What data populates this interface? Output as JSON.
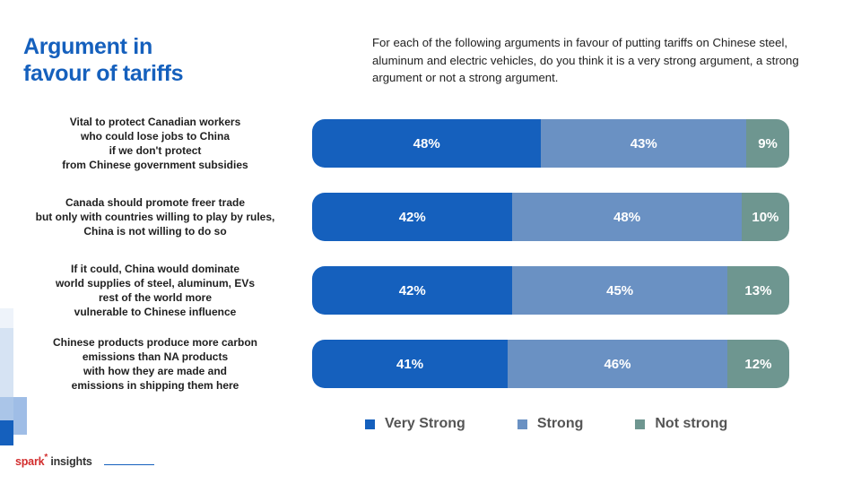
{
  "header": {
    "title_line1": "Argument in",
    "title_line2": "favour of tariffs",
    "question": "For each of the following arguments in favour of putting tariffs on Chinese steel, aluminum and electric vehicles, do you think it is a very strong argument, a strong argument or not a strong argument."
  },
  "colors": {
    "title": "#1560bd",
    "very_strong": "#1560bd",
    "strong": "#6a91c3",
    "not_strong": "#6e9690"
  },
  "logo": {
    "brand": "spark",
    "rest": "insights"
  },
  "chart_data": {
    "type": "bar",
    "orientation": "horizontal",
    "stacked": true,
    "percent_stacked": true,
    "categories": [
      [
        "Vital to protect Canadian workers",
        "who could lose jobs to China",
        "if we don't protect",
        "from Chinese government subsidies"
      ],
      [
        "Canada should promote freer trade",
        "but only with countries willing to play by rules,",
        "China is not willing to do so"
      ],
      [
        "If it could, China would dominate",
        "world supplies of steel, aluminum, EVs",
        "rest of the world more",
        "vulnerable to Chinese influence"
      ],
      [
        "Chinese products produce more carbon",
        "emissions than NA products",
        "with how they are made and",
        "emissions in shipping them here"
      ]
    ],
    "series": [
      {
        "name": "Very Strong",
        "values": [
          48,
          42,
          42,
          41
        ],
        "labels": [
          "48%",
          "42%",
          "42%",
          "41%"
        ]
      },
      {
        "name": "Strong",
        "values": [
          43,
          48,
          45,
          46
        ],
        "labels": [
          "43%",
          "48%",
          "45%",
          "46%"
        ]
      },
      {
        "name": "Not strong",
        "values": [
          9,
          10,
          13,
          12
        ],
        "labels": [
          "9%",
          "10%",
          "13%",
          "12%"
        ]
      }
    ],
    "xlim": [
      0,
      100
    ],
    "legend_position": "bottom"
  }
}
